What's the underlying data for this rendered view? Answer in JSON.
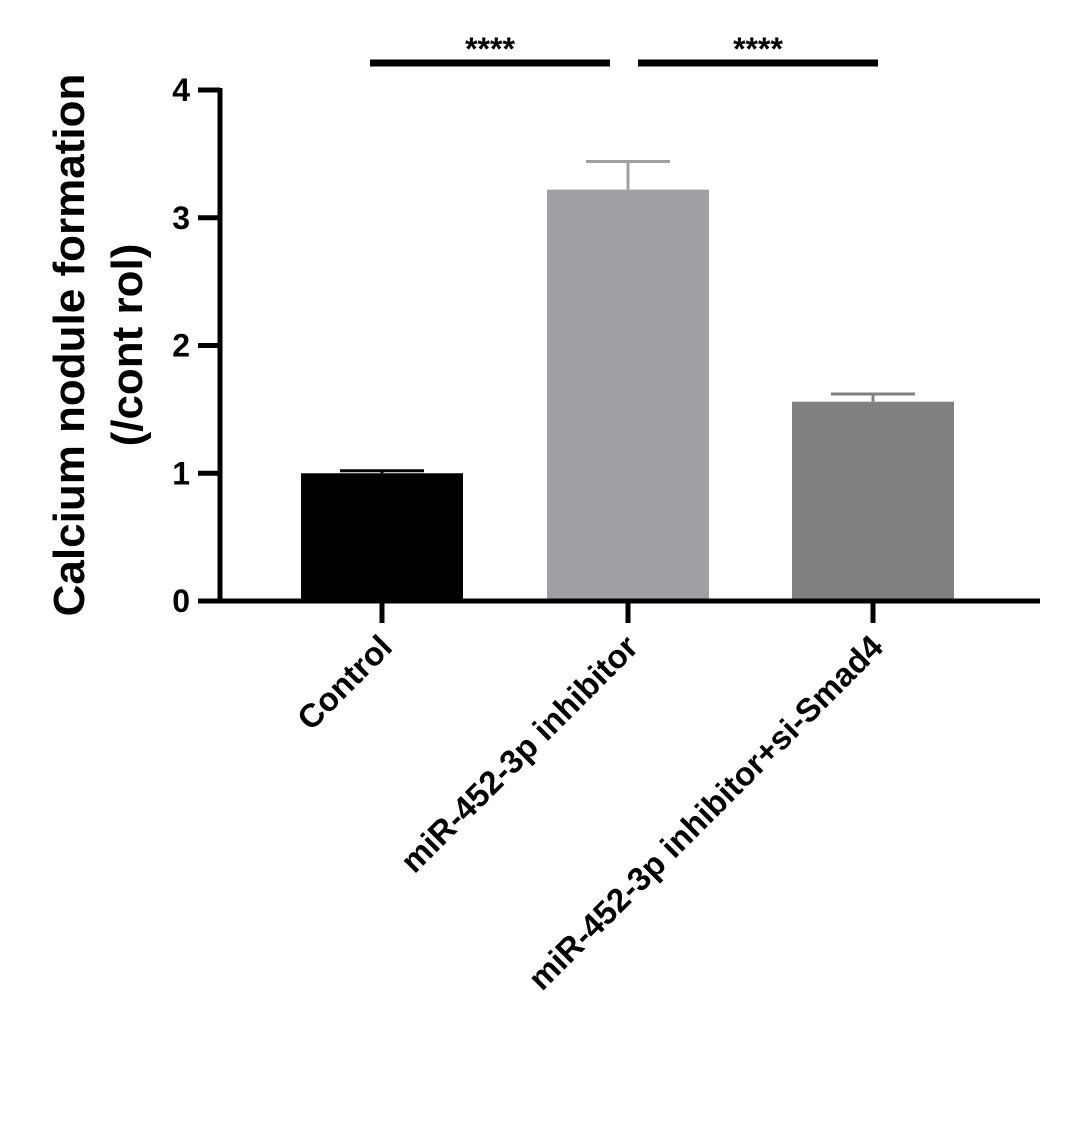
{
  "chart_data": {
    "type": "bar",
    "ylabel_line1": "Calcium nodule formation",
    "ylabel_line2": "(/cont rol)",
    "xlabel": "",
    "ylim": [
      0,
      4
    ],
    "yticks": [
      0,
      1,
      2,
      3,
      4
    ],
    "grid": false,
    "categories": [
      "Control",
      "miR-452-3p inhibitor",
      "miR-452-3p inhibitor+si-Smad4"
    ],
    "values": [
      1.0,
      3.22,
      1.56
    ],
    "errors": [
      0.02,
      0.22,
      0.06
    ],
    "colors": [
      "#000000",
      "#a0a0a4",
      "#808080"
    ],
    "error_colors": [
      "#000000",
      "#a0a0a4",
      "#808080"
    ],
    "significance": [
      {
        "from": 0,
        "to": 1,
        "label": "****"
      },
      {
        "from": 1,
        "to": 2,
        "label": "****"
      }
    ]
  }
}
